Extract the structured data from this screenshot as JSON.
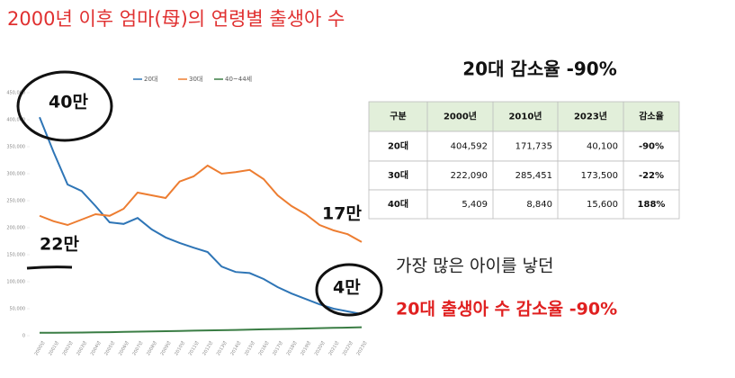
{
  "chart_data": {
    "type": "line",
    "title": "2000년 이후 엄마(母)의 연령별 출생아 수",
    "categories": [
      "2000년",
      "2001년",
      "2002년",
      "2003년",
      "2004년",
      "2005년",
      "2006년",
      "2007년",
      "2008년",
      "2009년",
      "2010년",
      "2011년",
      "2012년",
      "2013년",
      "2014년",
      "2015년",
      "2016년",
      "2017년",
      "2018년",
      "2019년",
      "2020년",
      "2021년",
      "2022년",
      "2023년"
    ],
    "series": [
      {
        "name": "20대",
        "color": "#2e75b6",
        "values": [
          404592,
          340000,
          280000,
          268000,
          240000,
          210000,
          207000,
          218000,
          197000,
          182000,
          171735,
          163000,
          155000,
          128000,
          118000,
          116000,
          105000,
          90000,
          78000,
          68000,
          58000,
          50000,
          45000,
          40100
        ]
      },
      {
        "name": "30대",
        "color": "#ed7d31",
        "values": [
          222090,
          212000,
          205000,
          215000,
          225000,
          222000,
          235000,
          265000,
          260000,
          255000,
          285451,
          295000,
          315000,
          300000,
          303000,
          307000,
          290000,
          260000,
          240000,
          225000,
          205000,
          195000,
          188000,
          173500
        ]
      },
      {
        "name": "40~44세",
        "color": "#3a7d44",
        "values": [
          5409,
          5500,
          5700,
          5900,
          6200,
          6500,
          7000,
          7600,
          8000,
          8400,
          8840,
          9300,
          9800,
          10200,
          10700,
          11200,
          11800,
          12300,
          12800,
          13300,
          13900,
          14500,
          15000,
          15600
        ]
      }
    ],
    "ylim": [
      0,
      450000
    ],
    "yticks": [
      0,
      {
        "value": 50000,
        "label": "50,000"
      },
      {
        "value": 100000,
        "label": "100,000"
      },
      {
        "value": 150000,
        "label": "150,000"
      },
      {
        "value": 200000,
        "label": "200,000"
      },
      {
        "value": 250000,
        "label": "250,000"
      },
      {
        "value": 300000,
        "label": "300,000"
      },
      {
        "value": 350000,
        "label": "350,000"
      },
      {
        "value": 400000,
        "label": "400,000"
      },
      {
        "value": 450000,
        "label": "450,000"
      }
    ],
    "legend": "top",
    "annotations": [
      "40만",
      "22만",
      "17만",
      "4만"
    ]
  },
  "table": {
    "title": "20대 감소율 -90%",
    "header": [
      "구분",
      "2000년",
      "2010년",
      "2023년",
      "감소율"
    ],
    "rows": [
      [
        "20대",
        "404,592",
        "171,735",
        "40,100",
        "-90%"
      ],
      [
        "30대",
        "222,090",
        "285,451",
        "173,500",
        "-22%"
      ],
      [
        "40대",
        "5,409",
        "8,840",
        "15,600",
        "188%"
      ]
    ]
  },
  "callout": {
    "line1": "가장 많은 아이를 낳던",
    "line2": "20대 출생아 수 감소율 -90%"
  }
}
